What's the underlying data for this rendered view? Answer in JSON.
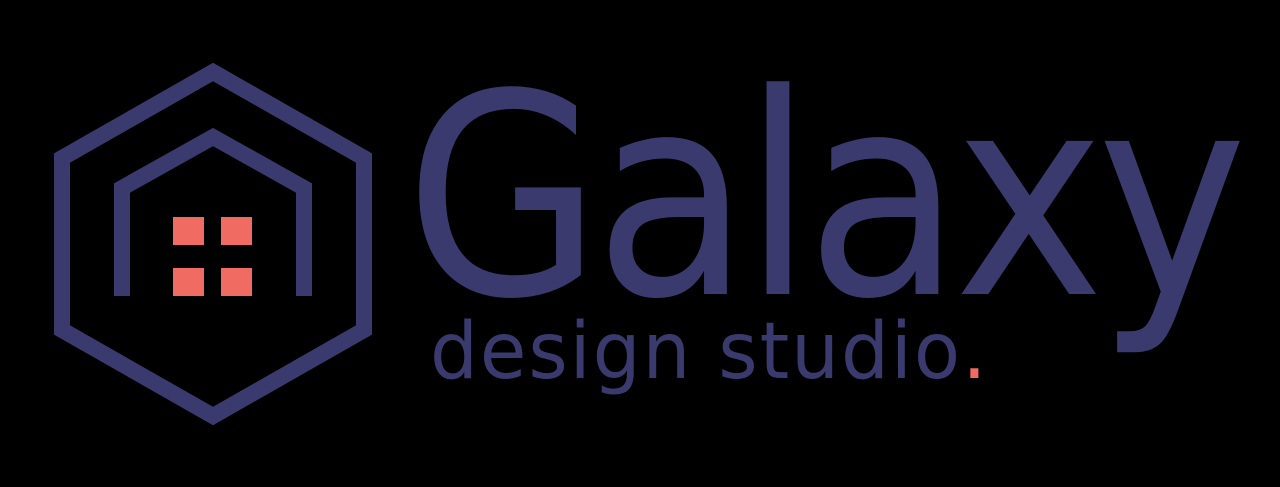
{
  "logo": {
    "name": "Galaxy",
    "tagline": "design studio",
    "tagline_dot": ".",
    "colors": {
      "primary": "#3b3a6e",
      "accent": "#f06b62",
      "background": "#000000"
    },
    "icon": "hexagon-house-icon"
  }
}
